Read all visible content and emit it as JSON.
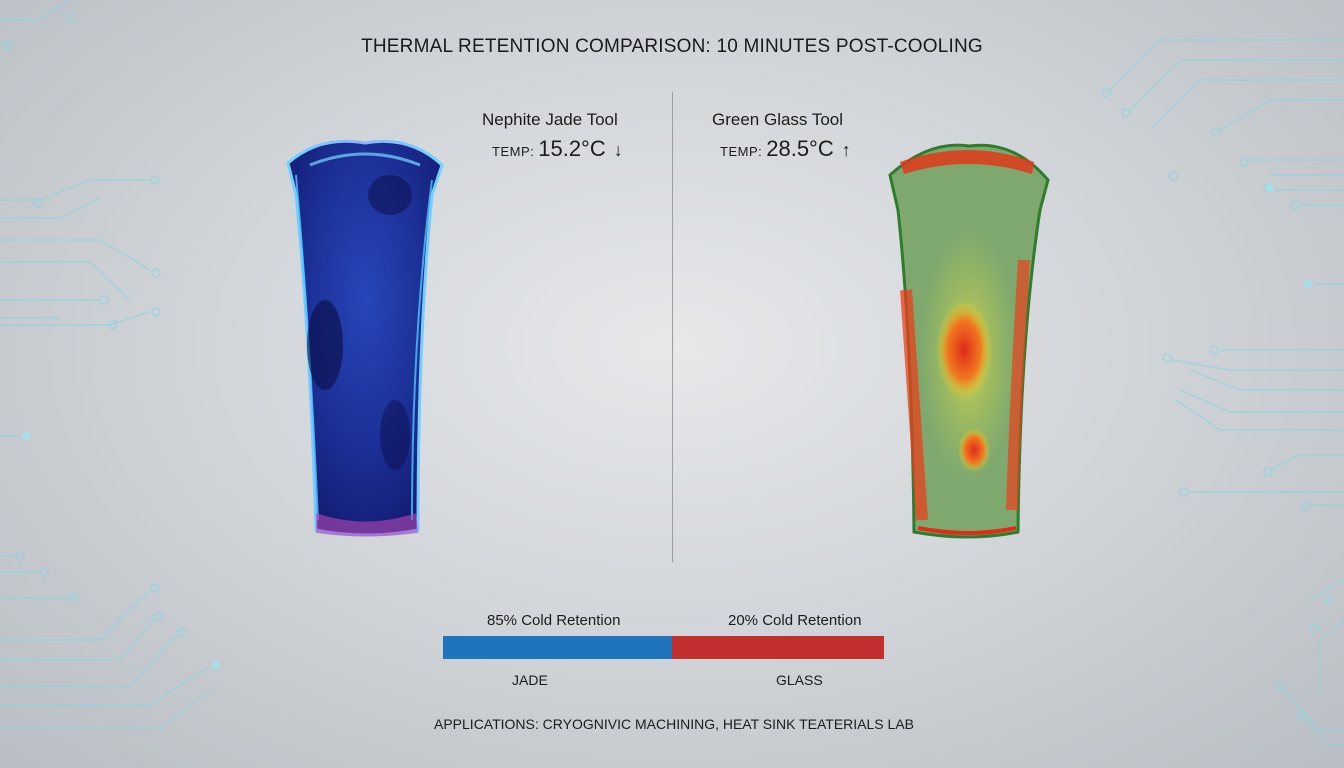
{
  "title": "THERMAL RETENTION COMPARISON: 10 MINUTES POST-COOLING",
  "left_tool": {
    "name": "Nephite Jade Tool",
    "temp_key": "TEMP:",
    "temp_value": "15.2°C",
    "arrow": "↓",
    "retention_label": "85% Cold Retention",
    "bar_name": "JADE",
    "retention_fraction": 0.85,
    "bar_color": "#1f74bd"
  },
  "right_tool": {
    "name": "Green Glass Tool",
    "temp_key": "TEMP:",
    "temp_value": "28.5°C",
    "arrow": "↑",
    "retention_label": "20% Cold Retention",
    "bar_name": "GLASS",
    "retention_fraction": 0.2,
    "bar_color": "#c22f2e"
  },
  "footer": "APPLICATIONS: CRYOGNIVIC MACHINING, HEAT SINK TEATERIALS LAB",
  "colors": {
    "background": "#d3d6da",
    "circuit_lines": "#8fd3e0",
    "jade_thermal": "#1b2a8f",
    "glass_thermal": "#7da86a"
  }
}
